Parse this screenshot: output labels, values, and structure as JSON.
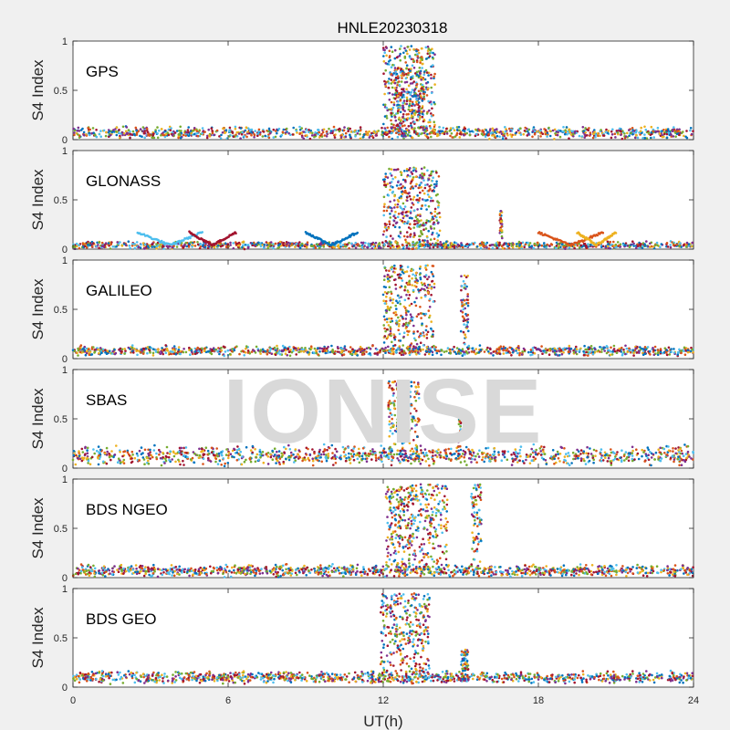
{
  "chart_data": {
    "type": "scatter",
    "title": "HNLE20230318",
    "xlabel": "UT(h)",
    "ylabel": "S4 Index",
    "xlim": [
      0,
      24
    ],
    "ylim": [
      0,
      1
    ],
    "xticks": [
      "0",
      "6",
      "12",
      "18",
      "24"
    ],
    "yticks": [
      "0",
      "0.5",
      "1"
    ],
    "watermark": "IONISE",
    "colors": [
      "#0072BD",
      "#D95319",
      "#EDB120",
      "#7E2F8E",
      "#77AC30",
      "#4DBEEE",
      "#A2142F"
    ],
    "panels": [
      {
        "name": "GPS",
        "baseline": 0.07,
        "noise": 0.05,
        "events": [
          {
            "x": [
              12.0,
              14.0
            ],
            "ymax": 0.95
          },
          {
            "x": [
              12.3,
              13.6
            ],
            "ymax": 0.7
          }
        ]
      },
      {
        "name": "GLONASS",
        "baseline": 0.04,
        "noise": 0.03,
        "arcs": [
          [
            2.5,
            5.0
          ],
          [
            4.5,
            6.3
          ],
          [
            9.0,
            11.0
          ],
          [
            18.0,
            20.5
          ],
          [
            19.5,
            21.0
          ]
        ],
        "events": [
          {
            "x": [
              12.0,
              14.2
            ],
            "ymax": 0.83
          },
          {
            "x": [
              16.5,
              16.6
            ],
            "ymax": 0.4
          }
        ]
      },
      {
        "name": "GALILEO",
        "baseline": 0.08,
        "noise": 0.04,
        "events": [
          {
            "x": [
              12.0,
              14.0
            ],
            "ymax": 0.95
          },
          {
            "x": [
              15.0,
              15.3
            ],
            "ymax": 0.85
          }
        ]
      },
      {
        "name": "SBAS",
        "baseline": 0.13,
        "noise": 0.08,
        "events": [
          {
            "x": [
              12.2,
              13.4
            ],
            "ymax": 0.88
          },
          {
            "x": [
              14.9,
              15.0
            ],
            "ymax": 0.5
          }
        ]
      },
      {
        "name": "BDS NGEO",
        "baseline": 0.07,
        "noise": 0.05,
        "events": [
          {
            "x": [
              12.1,
              14.5
            ],
            "ymax": 0.95
          },
          {
            "x": [
              15.4,
              15.8
            ],
            "ymax": 0.95
          }
        ]
      },
      {
        "name": "BDS GEO",
        "baseline": 0.1,
        "noise": 0.05,
        "events": [
          {
            "x": [
              11.9,
              13.8
            ],
            "ymax": 0.95
          },
          {
            "x": [
              15.0,
              15.3
            ],
            "ymax": 0.38
          }
        ]
      }
    ]
  }
}
